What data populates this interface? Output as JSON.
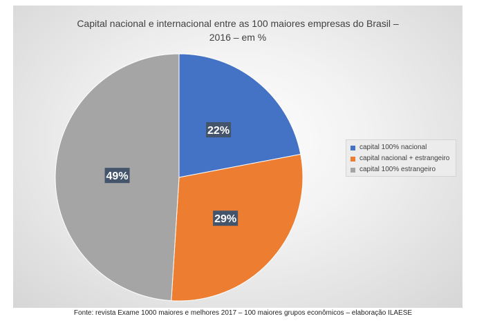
{
  "chart_data": {
    "type": "pie",
    "title": "Capital nacional e internacional entre as 100 maiores empresas do Brasil – 2016 – em %",
    "title_lines": [
      "Capital nacional e internacional entre as 100 maiores empresas do Brasil –",
      "2016 – em %"
    ],
    "slices": [
      {
        "label": "capital 100% nacional",
        "value": 22,
        "display": "22%",
        "color": "#4472c4"
      },
      {
        "label": "capital nacional + estrangeiro",
        "value": 29,
        "display": "29%",
        "color": "#ed7d31"
      },
      {
        "label": "capital 100% estrangeiro",
        "value": 49,
        "display": "49%",
        "color": "#a5a5a5"
      }
    ],
    "legend_position": "right",
    "data_label_bg": "#44546a"
  },
  "source": "Fonte: revista Exame 1000 maiores e melhores 2017 – 100 maiores grupos econômicos – elaboração ILAESE"
}
